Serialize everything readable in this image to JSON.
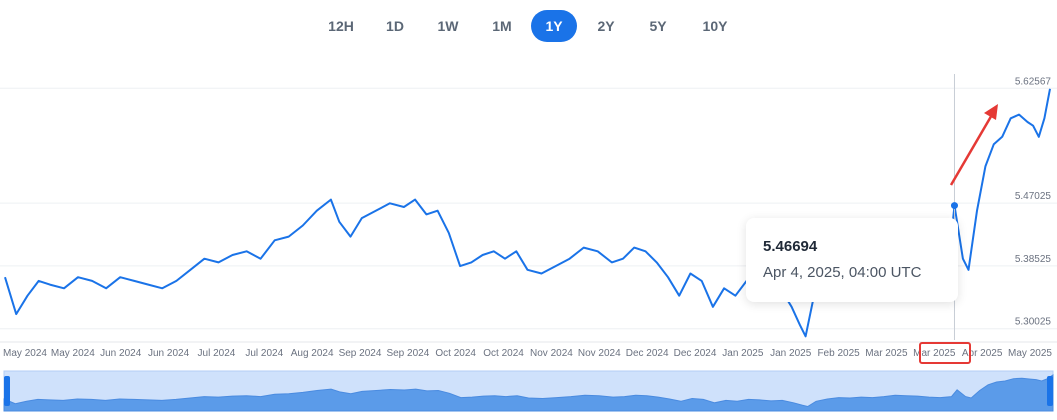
{
  "range_buttons": [
    {
      "label": "12H",
      "active": false
    },
    {
      "label": "1D",
      "active": false
    },
    {
      "label": "1W",
      "active": false
    },
    {
      "label": "1M",
      "active": false
    },
    {
      "label": "1Y",
      "active": true
    },
    {
      "label": "2Y",
      "active": false
    },
    {
      "label": "5Y",
      "active": false
    },
    {
      "label": "10Y",
      "active": false
    }
  ],
  "tooltip": {
    "value": "5.46694",
    "date": "Apr 4, 2025, 04:00 UTC"
  },
  "colors": {
    "line": "#1a73e8",
    "accent": "#1a73e8",
    "annotation": "#e53935",
    "navigator_fill": "#cfe1fb"
  },
  "chart_data": {
    "type": "line",
    "title": "",
    "xlabel": "",
    "ylabel": "",
    "y_ticks": [
      "5.30025",
      "5.38525",
      "5.47025",
      "5.62567"
    ],
    "ylim": [
      5.285,
      5.645
    ],
    "x_tick_labels": [
      "May 2024",
      "May 2024",
      "Jun 2024",
      "Jun 2024",
      "Jul 2024",
      "Jul 2024",
      "Aug 2024",
      "Sep 2024",
      "Sep 2024",
      "Oct 2024",
      "Oct 2024",
      "Nov 2024",
      "Nov 2024",
      "Dec 2024",
      "Dec 2024",
      "Jan 2025",
      "Jan 2025",
      "Feb 2025",
      "Mar 2025",
      "Mar 2025",
      "Apr 2025",
      "May 2025"
    ],
    "xlim": [
      "2024-05-01",
      "2025-05-08"
    ],
    "series": [
      {
        "values": [
          [
            "2024-05-01",
            5.37
          ],
          [
            "2024-05-05",
            5.32
          ],
          [
            "2024-05-09",
            5.345
          ],
          [
            "2024-05-13",
            5.365
          ],
          [
            "2024-05-17",
            5.36
          ],
          [
            "2024-05-22",
            5.355
          ],
          [
            "2024-05-27",
            5.37
          ],
          [
            "2024-06-01",
            5.365
          ],
          [
            "2024-06-06",
            5.355
          ],
          [
            "2024-06-11",
            5.37
          ],
          [
            "2024-06-16",
            5.365
          ],
          [
            "2024-06-21",
            5.36
          ],
          [
            "2024-06-26",
            5.355
          ],
          [
            "2024-07-01",
            5.365
          ],
          [
            "2024-07-06",
            5.38
          ],
          [
            "2024-07-11",
            5.395
          ],
          [
            "2024-07-16",
            5.39
          ],
          [
            "2024-07-21",
            5.4
          ],
          [
            "2024-07-26",
            5.405
          ],
          [
            "2024-07-31",
            5.395
          ],
          [
            "2024-08-05",
            5.42
          ],
          [
            "2024-08-10",
            5.425
          ],
          [
            "2024-08-15",
            5.44
          ],
          [
            "2024-08-20",
            5.46
          ],
          [
            "2024-08-25",
            5.475
          ],
          [
            "2024-08-28",
            5.445
          ],
          [
            "2024-09-01",
            5.425
          ],
          [
            "2024-09-05",
            5.45
          ],
          [
            "2024-09-10",
            5.46
          ],
          [
            "2024-09-15",
            5.47
          ],
          [
            "2024-09-20",
            5.465
          ],
          [
            "2024-09-24",
            5.475
          ],
          [
            "2024-09-28",
            5.455
          ],
          [
            "2024-10-02",
            5.46
          ],
          [
            "2024-10-06",
            5.43
          ],
          [
            "2024-10-10",
            5.385
          ],
          [
            "2024-10-14",
            5.39
          ],
          [
            "2024-10-18",
            5.4
          ],
          [
            "2024-10-22",
            5.405
          ],
          [
            "2024-10-26",
            5.395
          ],
          [
            "2024-10-30",
            5.405
          ],
          [
            "2024-11-03",
            5.38
          ],
          [
            "2024-11-08",
            5.375
          ],
          [
            "2024-11-13",
            5.385
          ],
          [
            "2024-11-18",
            5.395
          ],
          [
            "2024-11-23",
            5.41
          ],
          [
            "2024-11-28",
            5.405
          ],
          [
            "2024-12-03",
            5.39
          ],
          [
            "2024-12-07",
            5.395
          ],
          [
            "2024-12-11",
            5.41
          ],
          [
            "2024-12-15",
            5.405
          ],
          [
            "2024-12-19",
            5.39
          ],
          [
            "2024-12-23",
            5.37
          ],
          [
            "2024-12-27",
            5.345
          ],
          [
            "2024-12-31",
            5.375
          ],
          [
            "2025-01-04",
            5.365
          ],
          [
            "2025-01-08",
            5.33
          ],
          [
            "2025-01-12",
            5.355
          ],
          [
            "2025-01-16",
            5.345
          ],
          [
            "2025-01-20",
            5.365
          ],
          [
            "2025-01-24",
            5.36
          ],
          [
            "2025-01-28",
            5.35
          ],
          [
            "2025-02-01",
            5.355
          ],
          [
            "2025-02-05",
            5.33
          ],
          [
            "2025-02-08",
            5.305
          ],
          [
            "2025-02-10",
            5.29
          ],
          [
            "2025-02-13",
            5.345
          ],
          [
            "2025-02-17",
            5.37
          ],
          [
            "2025-02-21",
            5.385
          ],
          [
            "2025-02-25",
            5.38
          ],
          [
            "2025-03-01",
            5.39
          ],
          [
            "2025-03-05",
            5.385
          ],
          [
            "2025-03-09",
            5.395
          ],
          [
            "2025-03-13",
            5.41
          ],
          [
            "2025-03-17",
            5.405
          ],
          [
            "2025-03-21",
            5.4
          ],
          [
            "2025-03-25",
            5.39
          ],
          [
            "2025-03-29",
            5.385
          ],
          [
            "2025-04-02",
            5.395
          ],
          [
            "2025-04-04",
            5.46694
          ],
          [
            "2025-04-07",
            5.395
          ],
          [
            "2025-04-09",
            5.38
          ],
          [
            "2025-04-12",
            5.46
          ],
          [
            "2025-04-15",
            5.52
          ],
          [
            "2025-04-18",
            5.55
          ],
          [
            "2025-04-21",
            5.56
          ],
          [
            "2025-04-24",
            5.585
          ],
          [
            "2025-04-27",
            5.59
          ],
          [
            "2025-04-30",
            5.58
          ],
          [
            "2025-05-02",
            5.575
          ],
          [
            "2025-05-04",
            5.56
          ],
          [
            "2025-05-06",
            5.585
          ],
          [
            "2025-05-08",
            5.625
          ]
        ]
      }
    ],
    "grid": "horizontal",
    "legend": "none",
    "highlight_point": {
      "x": "2025-04-04",
      "y": 5.46694
    }
  }
}
